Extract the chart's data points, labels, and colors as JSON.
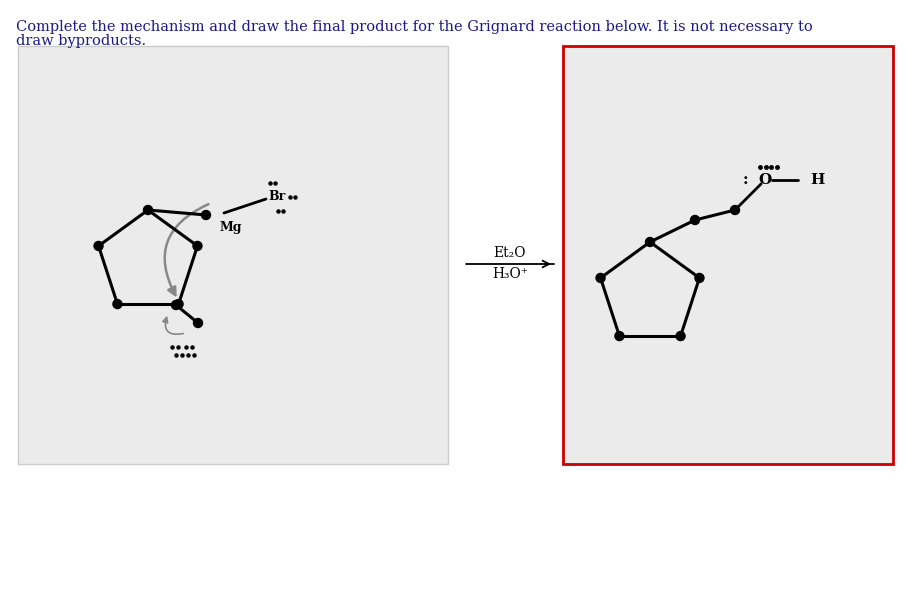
{
  "title_line1": "Complete the mechanism and draw the final product for the Grignard reaction below. It is not necessary to",
  "title_line2": "draw byproducts.",
  "title_color": "#1a1a8c",
  "title_fontsize": 10.5,
  "bg_color": "#ffffff",
  "panel_left_bg": "#ebebeb",
  "panel_right_bg": "#ebebeb",
  "panel_left_border": "#cccccc",
  "panel_right_border": "#cc0000",
  "line_color": "#000000",
  "dot_color": "#000000",
  "arrow_color": "#888888",
  "label_Mg": "Mg",
  "label_Br": "Br",
  "label_Et2O": "Et₂O",
  "label_H3O": "H₃O⁺",
  "label_O": "O",
  "label_H": "H",
  "label_colon": ":",
  "fig_width": 9.08,
  "fig_height": 6.04,
  "dpi": 100
}
